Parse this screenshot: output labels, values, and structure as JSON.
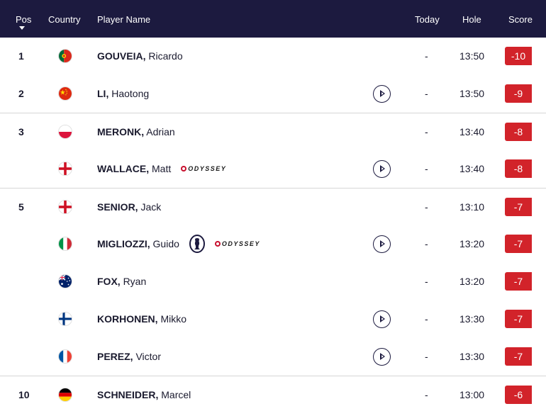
{
  "header": {
    "pos": "Pos",
    "country": "Country",
    "player_name": "Player Name",
    "today": "Today",
    "hole": "Hole",
    "score": "Score"
  },
  "colors": {
    "header_bg": "#1c1a3f",
    "score_bg": "#d2232a"
  },
  "rows": [
    {
      "pos": "1",
      "country": "portugal",
      "last": "GOUVEIA,",
      "first": "Ricardo",
      "today": "-",
      "hole": "13:50",
      "score": "-10",
      "video": false,
      "sponsors": []
    },
    {
      "pos": "2",
      "country": "china",
      "last": "LI,",
      "first": "Haotong",
      "today": "-",
      "hole": "13:50",
      "score": "-9",
      "video": true,
      "sponsors": []
    },
    {
      "pos": "3",
      "country": "poland",
      "last": "MERONK,",
      "first": "Adrian",
      "today": "-",
      "hole": "13:40",
      "score": "-8",
      "video": false,
      "sponsors": []
    },
    {
      "pos": "",
      "country": "england",
      "last": "WALLACE,",
      "first": "Matt",
      "today": "-",
      "hole": "13:40",
      "score": "-8",
      "video": true,
      "sponsors": [
        "ODYSSEY"
      ]
    },
    {
      "pos": "5",
      "country": "england",
      "last": "SENIOR,",
      "first": "Jack",
      "today": "-",
      "hole": "13:10",
      "score": "-7",
      "video": false,
      "sponsors": []
    },
    {
      "pos": "",
      "country": "italy",
      "last": "MIGLIOZZI,",
      "first": "Guido",
      "today": "-",
      "hole": "13:20",
      "score": "-7",
      "video": true,
      "sponsors": [
        "claret-jug",
        "ODYSSEY"
      ]
    },
    {
      "pos": "",
      "country": "australia",
      "last": "FOX,",
      "first": "Ryan",
      "today": "-",
      "hole": "13:20",
      "score": "-7",
      "video": false,
      "sponsors": []
    },
    {
      "pos": "",
      "country": "finland",
      "last": "KORHONEN,",
      "first": "Mikko",
      "today": "-",
      "hole": "13:30",
      "score": "-7",
      "video": true,
      "sponsors": []
    },
    {
      "pos": "",
      "country": "france",
      "last": "PEREZ,",
      "first": "Victor",
      "today": "-",
      "hole": "13:30",
      "score": "-7",
      "video": true,
      "sponsors": []
    },
    {
      "pos": "10",
      "country": "germany",
      "last": "SCHNEIDER,",
      "first": "Marcel",
      "today": "-",
      "hole": "13:00",
      "score": "-6",
      "video": false,
      "sponsors": []
    }
  ]
}
